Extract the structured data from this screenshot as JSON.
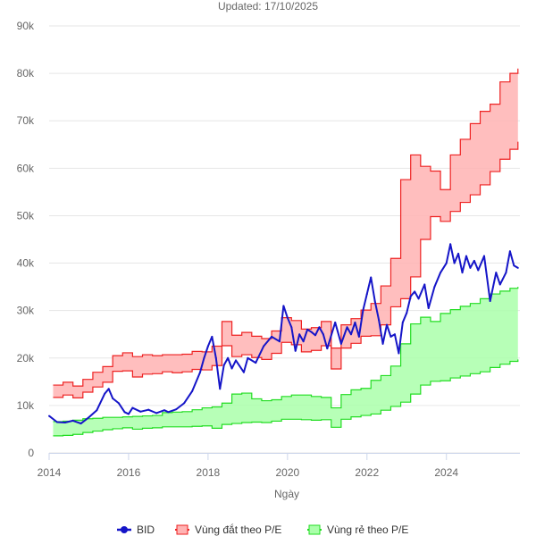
{
  "subtitle": "Updated: 17/10/2025",
  "colors": {
    "bid_line": "#1515c8",
    "expensive_stroke": "#ee2222",
    "expensive_fill": "#ffb3b3",
    "cheap_stroke": "#22dd22",
    "cheap_fill": "#aaffaa",
    "grid": "#e6e6e6",
    "axis": "#ccd6eb"
  },
  "legend": {
    "bid": "BID",
    "expensive": "Vùng đắt theo P/E",
    "cheap": "Vùng rẻ theo P/E"
  },
  "chart_data": {
    "type": "line",
    "title": "",
    "subtitle": "Updated: 17/10/2025",
    "xlabel": "Ngày",
    "ylabel": "",
    "xlim": [
      2014.0,
      2025.85
    ],
    "ylim": [
      0,
      90000
    ],
    "x_ticks": [
      2014,
      2016,
      2018,
      2020,
      2022,
      2024
    ],
    "y_ticks": [
      0,
      10000,
      20000,
      30000,
      40000,
      50000,
      60000,
      70000,
      80000,
      90000
    ],
    "y_tick_labels": [
      "0",
      "10k",
      "20k",
      "30k",
      "40k",
      "50k",
      "60k",
      "70k",
      "80k",
      "90k"
    ],
    "series": [
      {
        "name": "BID",
        "type": "line",
        "x": [
          2014.0,
          2014.2,
          2014.4,
          2014.6,
          2014.8,
          2015.0,
          2015.2,
          2015.4,
          2015.5,
          2015.6,
          2015.75,
          2015.9,
          2016.0,
          2016.1,
          2016.3,
          2016.5,
          2016.7,
          2016.9,
          2017.0,
          2017.2,
          2017.4,
          2017.6,
          2017.8,
          2017.9,
          2018.0,
          2018.1,
          2018.2,
          2018.3,
          2018.4,
          2018.5,
          2018.6,
          2018.7,
          2018.9,
          2019.0,
          2019.2,
          2019.4,
          2019.6,
          2019.8,
          2019.9,
          2020.0,
          2020.1,
          2020.2,
          2020.3,
          2020.4,
          2020.5,
          2020.6,
          2020.7,
          2020.8,
          2020.9,
          2021.0,
          2021.2,
          2021.35,
          2021.5,
          2021.6,
          2021.7,
          2021.8,
          2021.9,
          2022.0,
          2022.1,
          2022.2,
          2022.3,
          2022.4,
          2022.5,
          2022.6,
          2022.7,
          2022.8,
          2022.9,
          2023.0,
          2023.1,
          2023.2,
          2023.3,
          2023.45,
          2023.55,
          2023.7,
          2023.85,
          2024.0,
          2024.1,
          2024.2,
          2024.3,
          2024.4,
          2024.5,
          2024.6,
          2024.7,
          2024.8,
          2024.95,
          2025.1,
          2025.25,
          2025.35,
          2025.5,
          2025.6,
          2025.7,
          2025.8
        ],
        "values": [
          7800,
          6500,
          6400,
          6800,
          6200,
          7500,
          9000,
          12500,
          13500,
          11500,
          10500,
          8600,
          8200,
          9500,
          8700,
          9100,
          8400,
          9000,
          8600,
          9200,
          10500,
          13000,
          17000,
          20000,
          22500,
          24500,
          20000,
          13500,
          18500,
          20000,
          17800,
          19500,
          17000,
          20000,
          19000,
          22500,
          24500,
          23500,
          31000,
          28500,
          26500,
          21500,
          25000,
          23500,
          26000,
          25500,
          24800,
          26500,
          25000,
          22000,
          27500,
          23000,
          26500,
          25000,
          27500,
          24500,
          30000,
          33500,
          37000,
          32000,
          28000,
          23000,
          27000,
          24500,
          25000,
          21000,
          27500,
          29500,
          33000,
          34000,
          32500,
          35500,
          30500,
          35000,
          38000,
          40000,
          44000,
          40000,
          42000,
          38000,
          41500,
          39000,
          40500,
          38500,
          41500,
          32000,
          38000,
          35500,
          38000,
          42500,
          39500,
          39000
        ]
      },
      {
        "name": "Vùng đắt theo P/E",
        "type": "area-range",
        "x": [
          2014.1,
          2014.35,
          2014.6,
          2014.85,
          2015.1,
          2015.35,
          2015.6,
          2015.85,
          2016.1,
          2016.35,
          2016.6,
          2016.85,
          2017.1,
          2017.35,
          2017.6,
          2017.85,
          2018.1,
          2018.35,
          2018.6,
          2018.85,
          2019.1,
          2019.35,
          2019.6,
          2019.85,
          2020.1,
          2020.35,
          2020.6,
          2020.85,
          2021.1,
          2021.35,
          2021.6,
          2021.85,
          2022.1,
          2022.35,
          2022.6,
          2022.85,
          2023.1,
          2023.35,
          2023.6,
          2023.85,
          2024.1,
          2024.35,
          2024.6,
          2024.85,
          2025.1,
          2025.35,
          2025.6,
          2025.8
        ],
        "low": [
          11700,
          12200,
          11600,
          12800,
          13900,
          14900,
          17200,
          17300,
          16000,
          16600,
          16700,
          17100,
          16900,
          17100,
          17600,
          17500,
          18400,
          22600,
          20300,
          20700,
          20100,
          19700,
          21000,
          23300,
          22800,
          21300,
          21600,
          22600,
          17700,
          22100,
          23100,
          24600,
          24700,
          27000,
          30800,
          32500,
          37100,
          45000,
          49800,
          48800,
          50900,
          52800,
          54400,
          56500,
          59300,
          61900,
          64000,
          65600
        ],
        "high": [
          14300,
          14900,
          14100,
          15500,
          17000,
          18200,
          20500,
          21100,
          20300,
          20700,
          20500,
          20700,
          20700,
          20800,
          21400,
          21300,
          22500,
          27700,
          24800,
          25400,
          24600,
          24100,
          25700,
          28500,
          27900,
          26100,
          26400,
          27700,
          22100,
          27000,
          28300,
          30100,
          31500,
          35200,
          41000,
          57600,
          62800,
          60400,
          59400,
          55500,
          62800,
          66100,
          69400,
          72000,
          73500,
          78200,
          80000,
          81000
        ]
      },
      {
        "name": "Vùng rẻ theo P/E",
        "type": "area-range",
        "x": [
          2014.1,
          2014.35,
          2014.6,
          2014.85,
          2015.1,
          2015.35,
          2015.6,
          2015.85,
          2016.1,
          2016.35,
          2016.6,
          2016.85,
          2017.1,
          2017.35,
          2017.6,
          2017.85,
          2018.1,
          2018.35,
          2018.6,
          2018.85,
          2019.1,
          2019.35,
          2019.6,
          2019.85,
          2020.1,
          2020.35,
          2020.6,
          2020.85,
          2021.1,
          2021.35,
          2021.6,
          2021.85,
          2022.1,
          2022.35,
          2022.6,
          2022.85,
          2023.1,
          2023.35,
          2023.6,
          2023.85,
          2024.1,
          2024.35,
          2024.6,
          2024.85,
          2025.1,
          2025.35,
          2025.6,
          2025.8
        ],
        "low": [
          3600,
          3700,
          3900,
          4300,
          4600,
          4900,
          5100,
          5300,
          5000,
          5200,
          5300,
          5500,
          5500,
          5500,
          5600,
          5700,
          5200,
          6000,
          6200,
          6400,
          6500,
          6400,
          6700,
          7100,
          7100,
          7000,
          6900,
          7000,
          5400,
          7100,
          7600,
          7900,
          8200,
          9000,
          9800,
          10700,
          12400,
          14300,
          15100,
          15200,
          15800,
          16200,
          16700,
          17100,
          18000,
          18700,
          19300,
          19700
        ],
        "high": [
          6600,
          6700,
          6900,
          7200,
          7300,
          7500,
          7500,
          7600,
          7700,
          7800,
          7900,
          8500,
          8600,
          8700,
          9100,
          9500,
          9700,
          10500,
          12400,
          12600,
          11400,
          11000,
          11200,
          11900,
          12200,
          12200,
          11900,
          11700,
          9500,
          12300,
          13300,
          13600,
          15300,
          16300,
          18300,
          23000,
          27200,
          28600,
          27700,
          29400,
          30200,
          30900,
          31500,
          32500,
          33500,
          34100,
          34700,
          35000
        ]
      }
    ]
  }
}
